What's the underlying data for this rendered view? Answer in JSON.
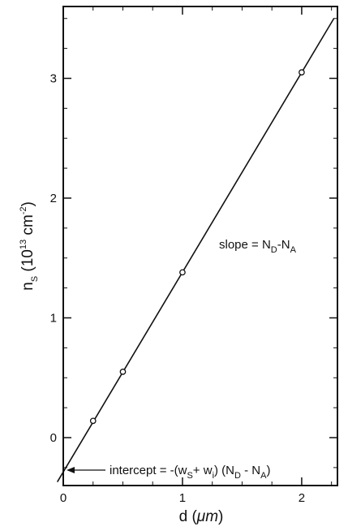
{
  "chart_data": {
    "type": "scatter",
    "x": [
      0.25,
      0.5,
      1.0,
      2.0
    ],
    "y": [
      0.14,
      0.55,
      1.38,
      3.05
    ],
    "fit_line": {
      "x": [
        -0.05,
        2.27
      ],
      "y": [
        -0.37,
        3.5
      ]
    },
    "xlim": [
      0,
      2.3
    ],
    "ylim": [
      -0.4,
      3.6
    ],
    "x_ticks": [
      0,
      1,
      2
    ],
    "x_tick_labels": [
      "0",
      "1",
      "2"
    ],
    "y_ticks": [
      0,
      1,
      2,
      3
    ],
    "y_tick_labels": [
      "0",
      "1",
      "2",
      "3"
    ],
    "grid": false,
    "xlabel": {
      "main": "d (",
      "unit": "μm",
      "close": ")"
    },
    "ylabel": {
      "n": "n",
      "n_sub": "S",
      "open": " (10",
      "exp": "13",
      "unit": " cm",
      "unit_exp": "-2",
      "close": ")"
    },
    "annotations": {
      "slope": {
        "text": "slope = N",
        "sub1": "D",
        "mid": "-N",
        "sub2": "A"
      },
      "intercept": {
        "text": "intercept = -(w",
        "sub1": "S",
        "mid1": "+ w",
        "sub2": "i",
        "mid2": ") (N",
        "sub3": "D",
        "mid3": " - N",
        "sub4": "A",
        "close": ")"
      }
    }
  }
}
